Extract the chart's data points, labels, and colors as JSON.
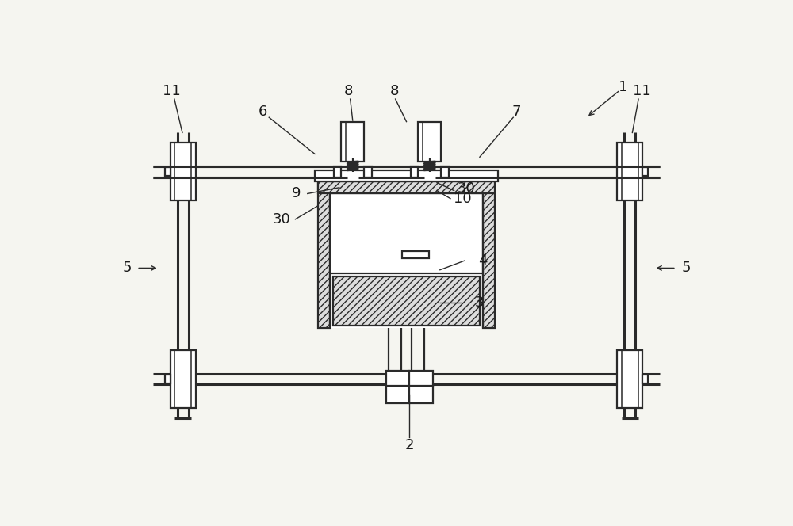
{
  "bg_color": "#f5f5f0",
  "line_color": "#2a2a2a",
  "label_color": "#1a1a1a",
  "fig_width": 10.0,
  "fig_height": 6.64,
  "dpi": 100,
  "shaft_lw": 2.2,
  "main_lw": 1.6,
  "thin_lw": 1.1,
  "label_fs": 13
}
